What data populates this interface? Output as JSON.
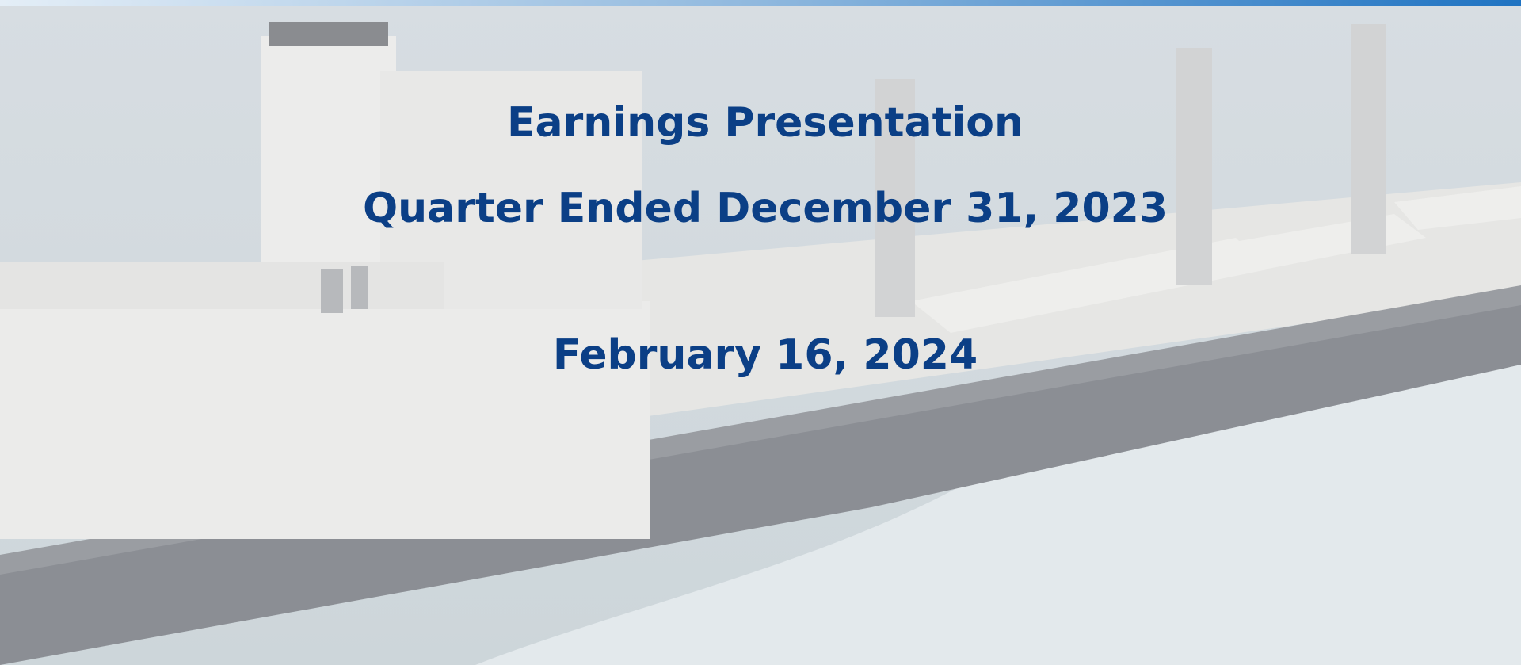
{
  "slide": {
    "title": "Earnings Presentation",
    "subtitle": "Quarter Ended December 31, 2023",
    "date": "February 16, 2024"
  }
}
